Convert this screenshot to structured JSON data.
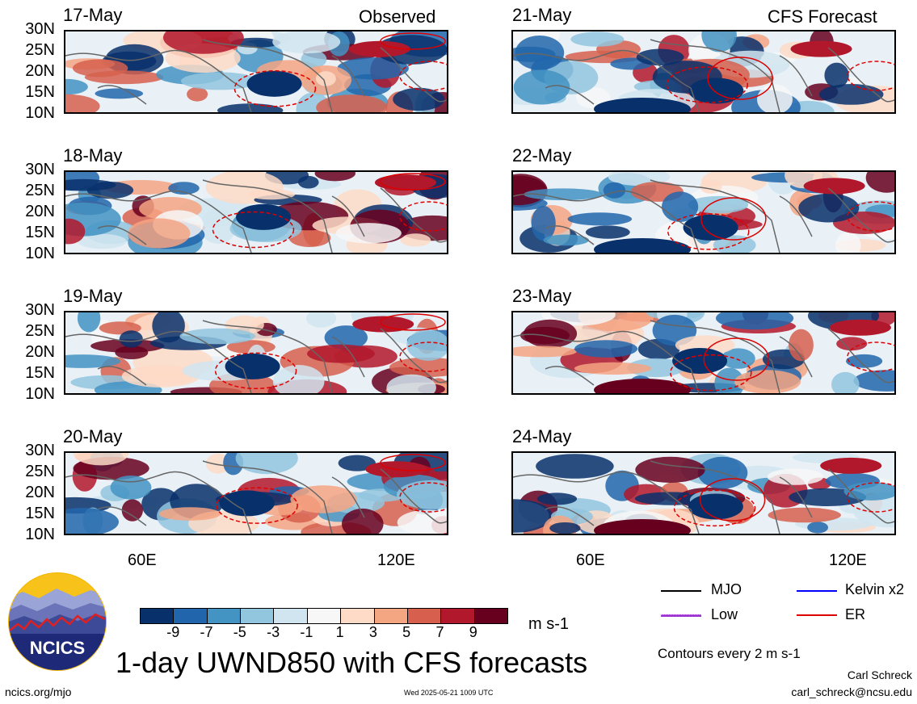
{
  "panels": {
    "left": [
      {
        "date": "17-May",
        "corner_label": "Observed"
      },
      {
        "date": "18-May",
        "corner_label": ""
      },
      {
        "date": "19-May",
        "corner_label": ""
      },
      {
        "date": "20-May",
        "corner_label": ""
      }
    ],
    "right": [
      {
        "date": "21-May",
        "corner_label": "CFS Forecast"
      },
      {
        "date": "22-May",
        "corner_label": ""
      },
      {
        "date": "23-May",
        "corner_label": ""
      },
      {
        "date": "24-May",
        "corner_label": ""
      }
    ]
  },
  "lat_labels": [
    "30N",
    "25N",
    "20N",
    "15N",
    "10N"
  ],
  "lon_labels": [
    "60E",
    "120E"
  ],
  "colorbar": {
    "ticks": [
      "-9",
      "-7",
      "-5",
      "-3",
      "-1",
      "1",
      "3",
      "5",
      "7",
      "9"
    ],
    "colors": [
      "#08306b",
      "#2166ac",
      "#4393c3",
      "#92c5de",
      "#d1e5f0",
      "#f7f7f7",
      "#fddbc7",
      "#f4a582",
      "#d6604d",
      "#b2182b",
      "#67001f"
    ],
    "units": "m s-1"
  },
  "legend": {
    "mjo": {
      "label": "MJO",
      "color": "#000000"
    },
    "kelvin": {
      "label": "Kelvin x2",
      "color": "#0000ff"
    },
    "low": {
      "label": "Low",
      "color": "#9933cc"
    },
    "er": {
      "label": "ER",
      "color": "#dd0000"
    }
  },
  "title": "1-day UWND850 with CFS forecasts",
  "contour_note": "Contours every 2 m s-1",
  "author": "Carl Schreck",
  "email": "carl_schreck@ncsu.edu",
  "site": "ncics.org/mjo",
  "timestamp": "Wed 2025-05-21 1009 UTC",
  "logo_text": "NCICS"
}
